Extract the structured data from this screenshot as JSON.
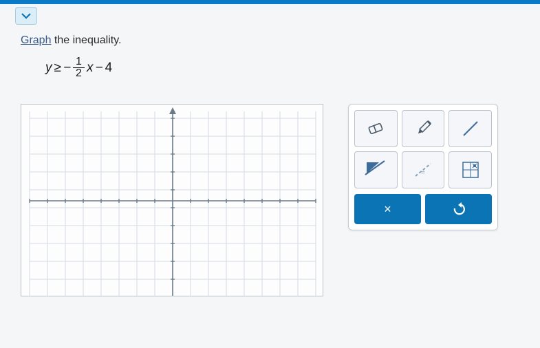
{
  "instruction": {
    "underlined": "Graph",
    "rest": " the inequality."
  },
  "equation": {
    "lhs": "y",
    "op": "≥",
    "neg": "−",
    "frac_num": "1",
    "frac_den": "2",
    "var": "x",
    "minus": "−",
    "constant": "4"
  },
  "graph": {
    "cols": 16,
    "rows": 10,
    "cell": 26,
    "ox": 220,
    "oy": 140,
    "grid_color": "#d2dbe3",
    "axis_color": "#6a7a88",
    "bg": "#fdfdfd"
  },
  "tools": {
    "eraser": "eraser-icon",
    "pencil": "pencil-icon",
    "line": "line-icon",
    "shade": "shade-icon",
    "dashed": "dashed-line-icon",
    "points": "point-grid-icon"
  },
  "actions": {
    "clear": "×",
    "undo": "↶"
  },
  "colors": {
    "primary": "#0b74b5",
    "tool_icon": "#3d6b9a",
    "icon_dark": "#4a5a6a"
  }
}
